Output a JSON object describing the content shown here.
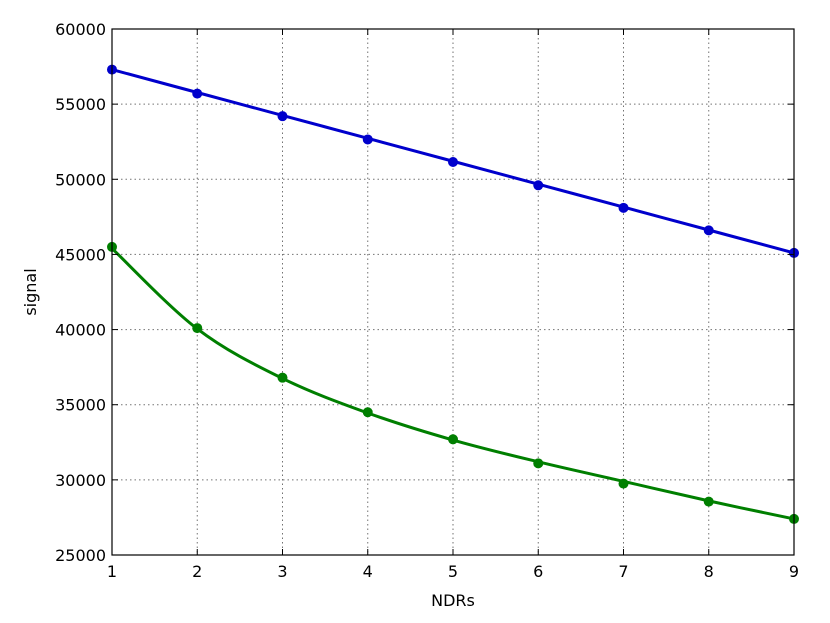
{
  "chart_data": {
    "type": "line",
    "xlabel": "NDRs",
    "ylabel": "signal",
    "xlim": [
      1,
      9
    ],
    "ylim": [
      25000,
      60000
    ],
    "x_ticks": [
      1,
      2,
      3,
      4,
      5,
      6,
      7,
      8,
      9
    ],
    "y_ticks": [
      25000,
      30000,
      35000,
      40000,
      45000,
      50000,
      55000,
      60000
    ],
    "grid": true,
    "series": [
      {
        "color": "#0000cc",
        "x": [
          1,
          2,
          3,
          4,
          5,
          6,
          7,
          8,
          9
        ],
        "points": [
          57300,
          55700,
          54200,
          52650,
          51150,
          49600,
          48100,
          46600,
          45100
        ],
        "fit": [
          57300,
          55775,
          54250,
          52725,
          51200,
          49675,
          48150,
          46625,
          45100
        ]
      },
      {
        "color": "#007f00",
        "x": [
          1,
          2,
          3,
          4,
          5,
          6,
          7,
          8,
          9
        ],
        "points": [
          45500,
          40100,
          36800,
          34500,
          32700,
          31100,
          29750,
          28550,
          27400
        ],
        "fit": [
          45400,
          40050,
          36750,
          34450,
          32650,
          31200,
          29900,
          28600,
          27400
        ]
      }
    ]
  }
}
